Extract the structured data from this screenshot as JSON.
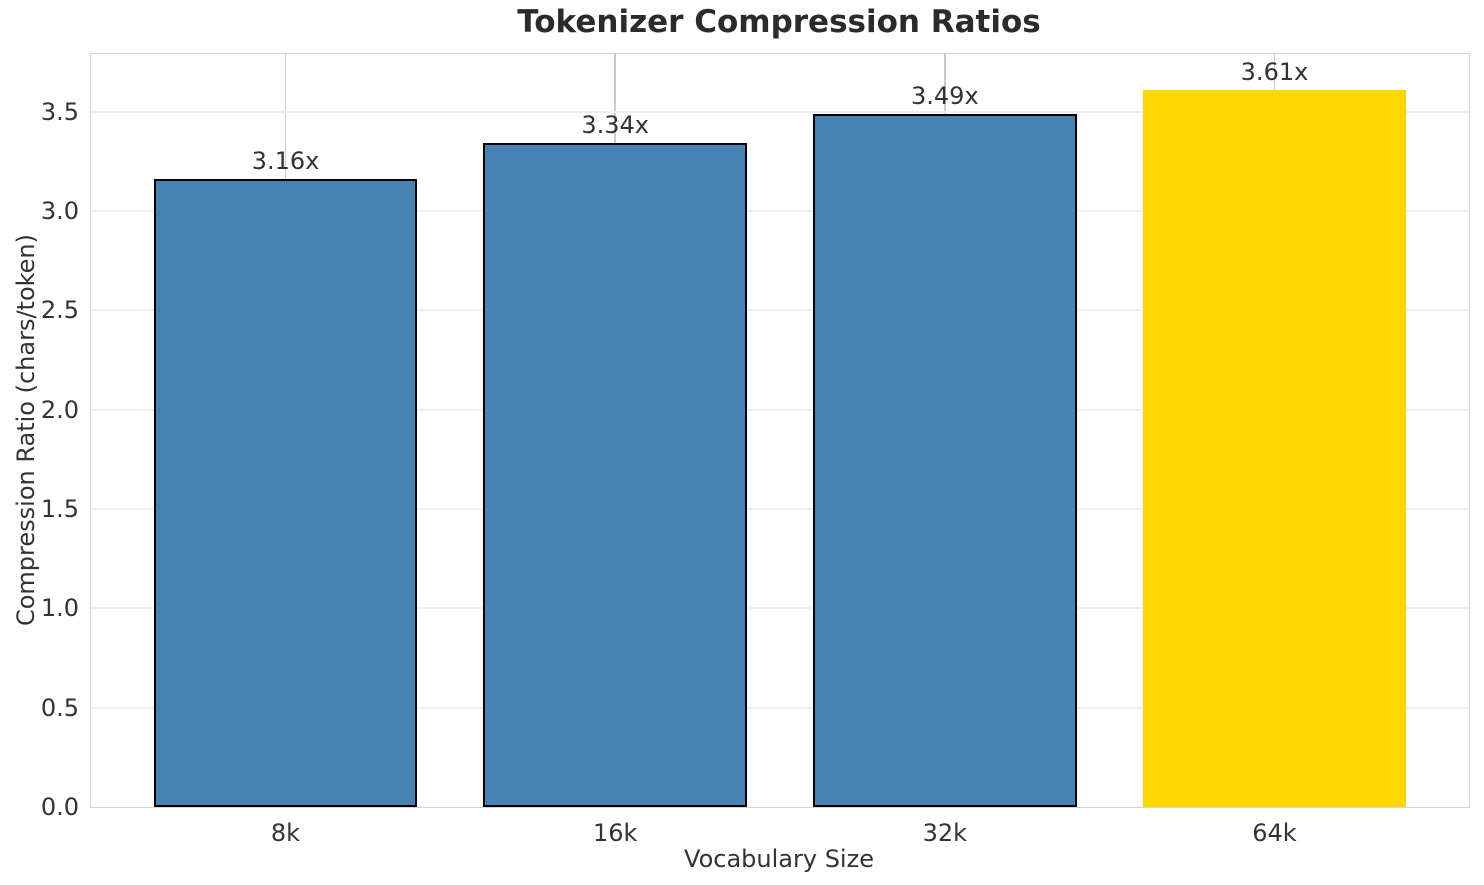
{
  "chart_data": {
    "type": "bar",
    "title": "Tokenizer Compression Ratios",
    "xlabel": "Vocabulary Size",
    "ylabel": "Compression Ratio (chars/token)",
    "categories": [
      "8k",
      "16k",
      "32k",
      "64k"
    ],
    "values": [
      3.16,
      3.34,
      3.49,
      3.61
    ],
    "bar_labels": [
      "3.16x",
      "3.34x",
      "3.49x",
      "3.61x"
    ],
    "bar_fill_colors": [
      "#4682B4",
      "#4682B4",
      "#4682B4",
      "#FFD700"
    ],
    "bar_edge_colors": [
      "#000000",
      "#000000",
      "#000000",
      "none"
    ],
    "ylim": [
      0,
      3.79
    ],
    "yticks": [
      0.0,
      0.5,
      1.0,
      1.5,
      2.0,
      2.5,
      3.0,
      3.5
    ],
    "ytick_labels": [
      "0.0",
      "0.5",
      "1.0",
      "1.5",
      "2.0",
      "2.5",
      "3.0",
      "3.5"
    ],
    "grid": true,
    "legend": null,
    "colors": {
      "grid_horizontal": "#efefef",
      "grid_vertical": "#cccccc",
      "spine": "#d4d4d4",
      "text": "#333333",
      "title_text": "#2b2b2b"
    }
  }
}
